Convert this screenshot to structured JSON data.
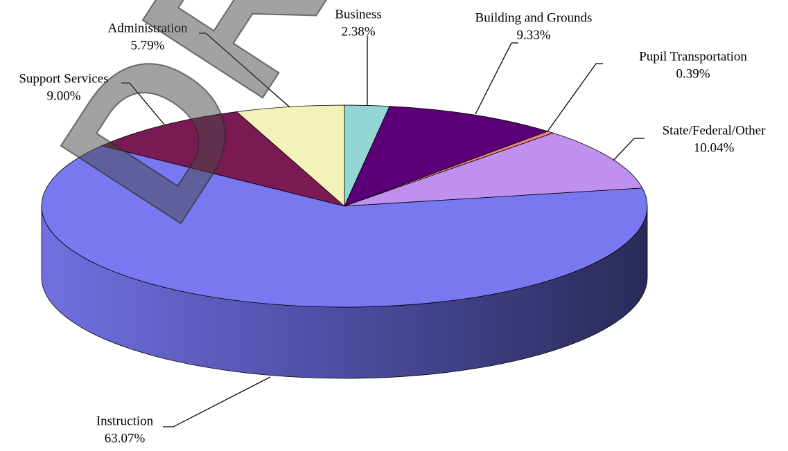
{
  "chart_data": {
    "type": "pie3d",
    "categories": [
      "Business",
      "Building and Grounds",
      "Pupil Transportation",
      "State/Federal/Other",
      "Instruction",
      "Support Services",
      "Administration"
    ],
    "values": [
      2.38,
      9.33,
      0.39,
      10.04,
      63.07,
      9.0,
      5.79
    ],
    "value_labels": [
      "2.38%",
      "9.33%",
      "0.39%",
      "10.04%",
      "63.07%",
      "9.00%",
      "5.79%"
    ],
    "colors": [
      "#93d6d6",
      "#5c0077",
      "#f08080",
      "#c090f0",
      "#7878f0",
      "#7a1a55",
      "#f2f2b8"
    ],
    "watermark": "DRAFT"
  }
}
